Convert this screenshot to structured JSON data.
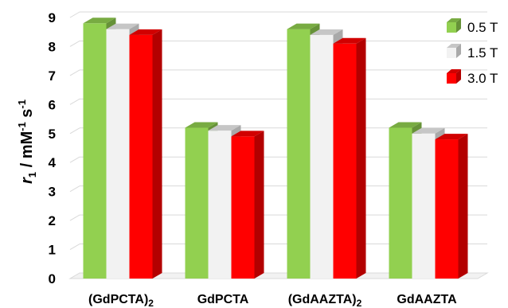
{
  "chart_data": {
    "type": "bar",
    "style": "3d-clustered-column",
    "categories": [
      "(GdPCTA)",
      "GdPCTA",
      "(GdAAZTA)",
      "GdAAZTA"
    ],
    "category_subscripts": [
      "2",
      "",
      "2",
      ""
    ],
    "series": [
      {
        "name": "0.5 T",
        "color": "#92d050",
        "values": [
          8.8,
          5.2,
          8.6,
          5.2
        ]
      },
      {
        "name": "1.5 T",
        "color": "#f2f2f2",
        "values": [
          8.6,
          5.1,
          8.4,
          5.0
        ]
      },
      {
        "name": "3.0 T",
        "color": "#ff0000",
        "values": [
          8.4,
          4.9,
          8.1,
          4.8
        ]
      }
    ],
    "ylim": [
      0,
      9
    ],
    "yticks": [
      "0",
      "1",
      "2",
      "3",
      "4",
      "5",
      "6",
      "7",
      "8",
      "9"
    ],
    "ylabel": {
      "italic": "r",
      "sub": "1",
      "main": " / mM",
      "sup1": "-1",
      "mid": " s",
      "sup2": "-1"
    },
    "grid": true,
    "legend_position": "top-right"
  }
}
